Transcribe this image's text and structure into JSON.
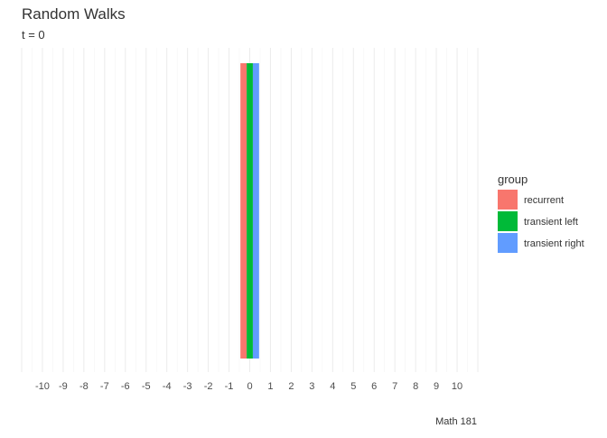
{
  "chart_data": {
    "type": "bar",
    "title": "Random Walks",
    "subtitle": "t = 0",
    "caption": "Math 181",
    "xlabel": "",
    "ylabel": "",
    "xlim": [
      -11,
      11
    ],
    "ylim": [
      0,
      1
    ],
    "x_ticks": [
      -10,
      -9,
      -8,
      -7,
      -6,
      -5,
      -4,
      -3,
      -2,
      -1,
      0,
      1,
      2,
      3,
      4,
      5,
      6,
      7,
      8,
      9,
      10
    ],
    "grid": true,
    "grid_orientation": "vertical",
    "bar_arrangement": "dodged",
    "legend": {
      "title": "group",
      "position": "right"
    },
    "series": [
      {
        "name": "recurrent",
        "color": "#F8766D",
        "x": [
          0
        ],
        "values": [
          1
        ]
      },
      {
        "name": "transient left",
        "color": "#00BA38",
        "x": [
          0
        ],
        "values": [
          1
        ]
      },
      {
        "name": "transient right",
        "color": "#619CFF",
        "x": [
          0
        ],
        "values": [
          1
        ]
      }
    ]
  }
}
